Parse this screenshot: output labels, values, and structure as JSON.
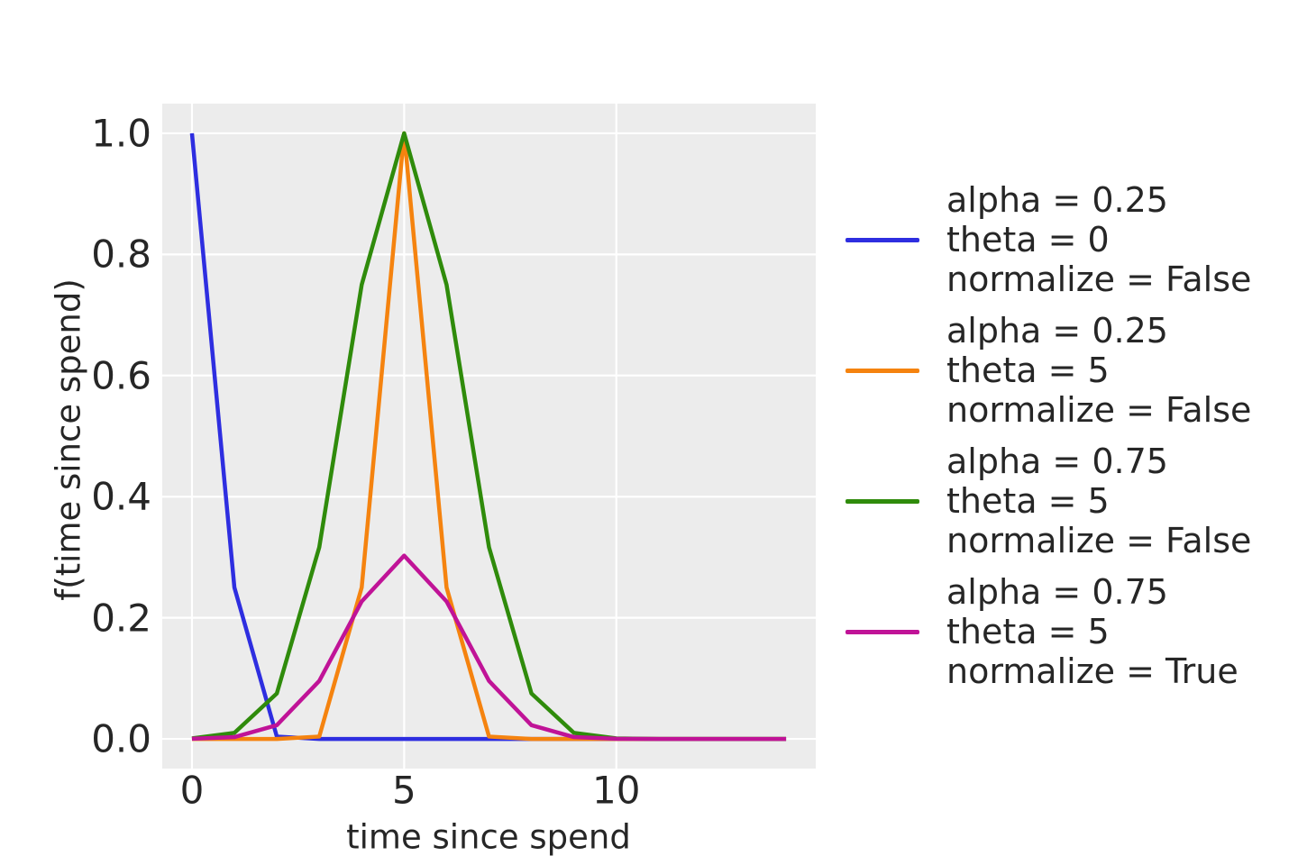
{
  "chart_data": {
    "type": "line",
    "title": "",
    "xlabel": "time since spend",
    "ylabel": "f(time since spend)",
    "x": [
      0,
      1,
      2,
      3,
      4,
      5,
      6,
      7,
      8,
      9,
      10,
      11,
      12,
      13,
      14
    ],
    "series": [
      {
        "id": "blue",
        "name": "alpha = 0.25, theta = 0, normalize = False",
        "color": "#2e2ee0",
        "values": [
          1.0,
          0.25,
          0.0039,
          0.0,
          0.0,
          0.0,
          0.0,
          0.0,
          0.0,
          0.0,
          0.0,
          0.0,
          0.0,
          0.0,
          0.0
        ]
      },
      {
        "id": "orange",
        "name": "alpha = 0.25, theta = 5, normalize = False",
        "color": "#f5830f",
        "values": [
          0.0,
          0.0,
          0.0,
          0.0039,
          0.25,
          1.0,
          0.25,
          0.0039,
          0.0,
          0.0,
          0.0,
          0.0,
          0.0,
          0.0,
          0.0
        ]
      },
      {
        "id": "green",
        "name": "alpha = 0.75, theta = 5, normalize = False",
        "color": "#2f8b0b",
        "values": [
          0.0008,
          0.01,
          0.0751,
          0.3164,
          0.75,
          1.0,
          0.75,
          0.3164,
          0.0751,
          0.01,
          0.0008,
          0.0,
          0.0,
          0.0,
          0.0
        ]
      },
      {
        "id": "magenta",
        "name": "alpha = 0.75, theta = 5, normalize = True",
        "color": "#c01397",
        "values": [
          0.0002,
          0.003,
          0.0227,
          0.0957,
          0.227,
          0.3026,
          0.227,
          0.0957,
          0.0227,
          0.003,
          0.0002,
          0.0,
          0.0,
          0.0,
          0.0
        ]
      }
    ],
    "xticks": [
      0,
      5,
      10
    ],
    "xtick_labels": [
      "0",
      "5",
      "10"
    ],
    "yticks": [
      0.0,
      0.2,
      0.4,
      0.6,
      0.8,
      1.0
    ],
    "ytick_labels": [
      "0.0",
      "0.2",
      "0.4",
      "0.6",
      "0.8",
      "1.0"
    ],
    "xlim": [
      -0.7,
      14.7
    ],
    "ylim": [
      -0.049,
      1.049
    ],
    "grid": true,
    "plot_bg": "#ececec",
    "grid_color": "#ffffff",
    "legend_position": "right"
  },
  "legend": {
    "entries": [
      {
        "id": "blue",
        "color": "#2e2ee0",
        "lines": [
          "alpha = 0.25",
          "theta = 0",
          "normalize = False"
        ]
      },
      {
        "id": "orange",
        "color": "#f5830f",
        "lines": [
          "alpha = 0.25",
          "theta = 5",
          "normalize = False"
        ]
      },
      {
        "id": "green",
        "color": "#2f8b0b",
        "lines": [
          "alpha = 0.75",
          "theta = 5",
          "normalize = False"
        ]
      },
      {
        "id": "magenta",
        "color": "#c01397",
        "lines": [
          "alpha = 0.75",
          "theta = 5",
          "normalize = True"
        ]
      }
    ]
  }
}
